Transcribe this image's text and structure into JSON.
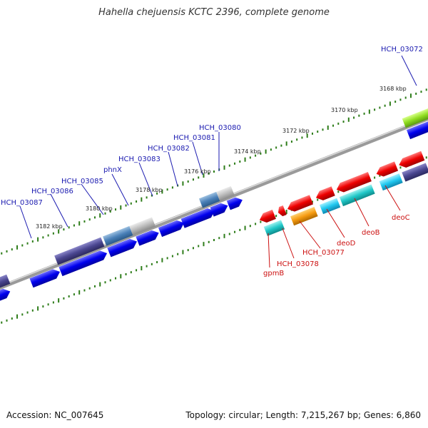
{
  "title": "Hahella chejuensis KCTC 2396, complete genome",
  "footer": {
    "accession": "Accession: NC_007645",
    "summary": "Topology: circular; Length: 7,215,267 bp; Genes: 6,860"
  },
  "kbp_labels": [
    "3168 kbp",
    "3170 kbp",
    "3172 kbp",
    "3174 kbp",
    "3176 kbp",
    "3178 kbp",
    "3180 kbp",
    "3182 kbp"
  ],
  "upper_genes": [
    "HCH_03072",
    "HCH_03080",
    "HCH_03081",
    "HCH_03082",
    "HCH_03083",
    "phnX",
    "HCH_03085",
    "HCH_03086",
    "HCH_03087"
  ],
  "lower_genes": [
    "deoC",
    "deoB",
    "deoD",
    "HCH_03077",
    "HCH_03078",
    "gpmB"
  ],
  "colors": {
    "forward_cds": "#0000ee",
    "reverse_cds": "#ee0000",
    "backbone": "#888888",
    "tick": "#2e7d1a"
  }
}
